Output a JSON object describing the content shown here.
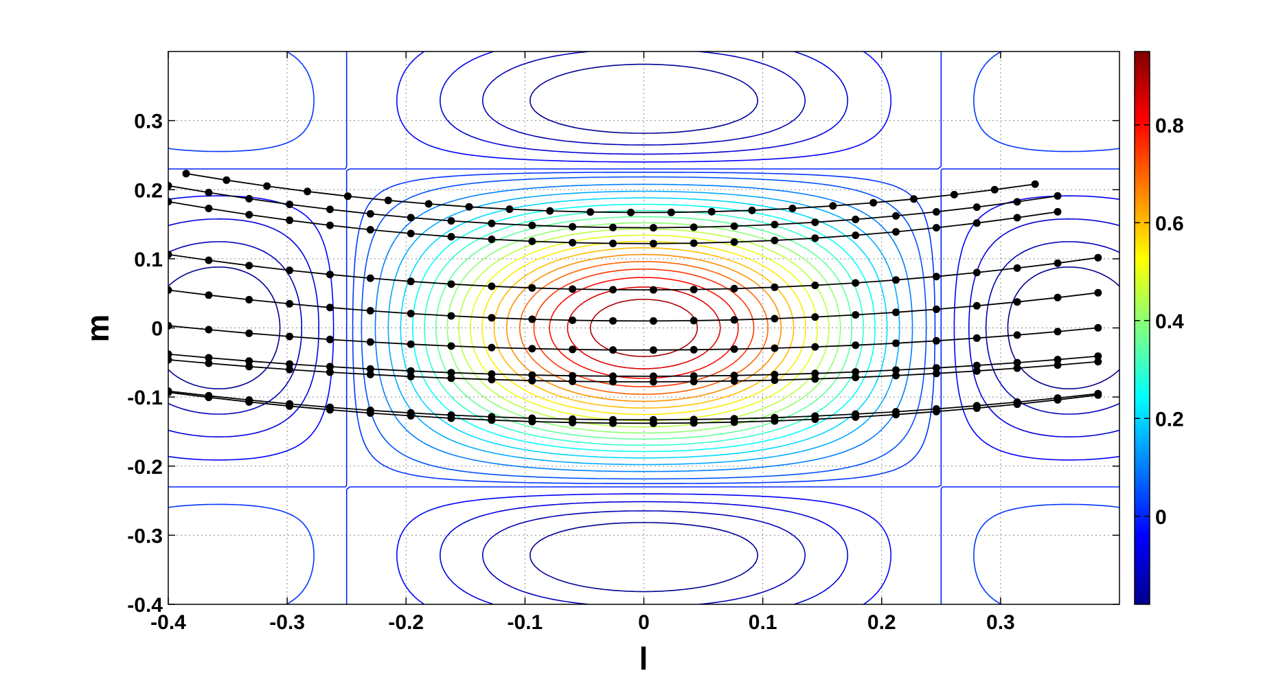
{
  "chart_data": {
    "type": "contour",
    "title": "",
    "xlabel": "l",
    "ylabel": "m",
    "xlim": [
      -0.4,
      0.4
    ],
    "ylim": [
      -0.4,
      0.4
    ],
    "xticks": [
      -0.4,
      -0.3,
      -0.2,
      -0.1,
      0,
      0.1,
      0.2,
      0.3
    ],
    "xtick_labels": [
      "-0.4",
      "-0.3",
      "-0.2",
      "-0.1",
      "0",
      "0.1",
      "0.2",
      "0.3"
    ],
    "yticks": [
      -0.4,
      -0.3,
      -0.2,
      -0.1,
      0,
      0.1,
      0.2,
      0.3
    ],
    "ytick_labels": [
      "-0.4",
      "-0.3",
      "-0.2",
      "-0.1",
      "0",
      "0.1",
      "0.2",
      "0.3"
    ],
    "grid": true,
    "colorbar": {
      "range": [
        -0.18,
        0.95
      ],
      "ticks": [
        0,
        0.2,
        0.4,
        0.6,
        0.8
      ],
      "tick_labels": [
        "0",
        "0.2",
        "0.4",
        "0.6",
        "0.8"
      ],
      "colormap": "jet"
    },
    "contour_field": {
      "description_of_function": "separable sinc-like beam pattern",
      "x_main_lobe_half_width": 0.25,
      "y_main_lobe_half_width": 0.23,
      "peak": 0.95,
      "levels_main_lobe": [
        0.05,
        0.1,
        0.15,
        0.2,
        0.25,
        0.3,
        0.35,
        0.4,
        0.45,
        0.5,
        0.55,
        0.6,
        0.65,
        0.7,
        0.75,
        0.8,
        0.85,
        0.9
      ],
      "levels_side_lobes": [
        -0.16,
        -0.12,
        -0.08,
        -0.04,
        0.0,
        0.02
      ]
    },
    "tracks": [
      {
        "m_center": 0.167,
        "curvature": 0.38,
        "l_start": -0.385,
        "l_end": 0.36
      },
      {
        "m_center": 0.145,
        "curvature": 0.38,
        "l_start": -0.4,
        "l_end": 0.365
      },
      {
        "m_center": 0.122,
        "curvature": 0.38,
        "l_start": -0.4,
        "l_end": 0.37
      },
      {
        "m_center": 0.055,
        "curvature": 0.32,
        "l_start": -0.4,
        "l_end": 0.39
      },
      {
        "m_center": 0.01,
        "curvature": 0.28,
        "l_start": -0.4,
        "l_end": 0.39
      },
      {
        "m_center": -0.032,
        "curvature": 0.22,
        "l_start": -0.4,
        "l_end": 0.39
      },
      {
        "m_center": -0.07,
        "curvature": 0.2,
        "l_start": -0.4,
        "l_end": 0.39
      },
      {
        "m_center": -0.078,
        "curvature": 0.2,
        "l_start": -0.4,
        "l_end": 0.39
      },
      {
        "m_center": -0.133,
        "curvature": 0.26,
        "l_start": -0.4,
        "l_end": 0.39
      },
      {
        "m_center": -0.138,
        "curvature": 0.28,
        "l_start": -0.4,
        "l_end": 0.39
      }
    ],
    "track_point_spacing_l": 0.034
  }
}
